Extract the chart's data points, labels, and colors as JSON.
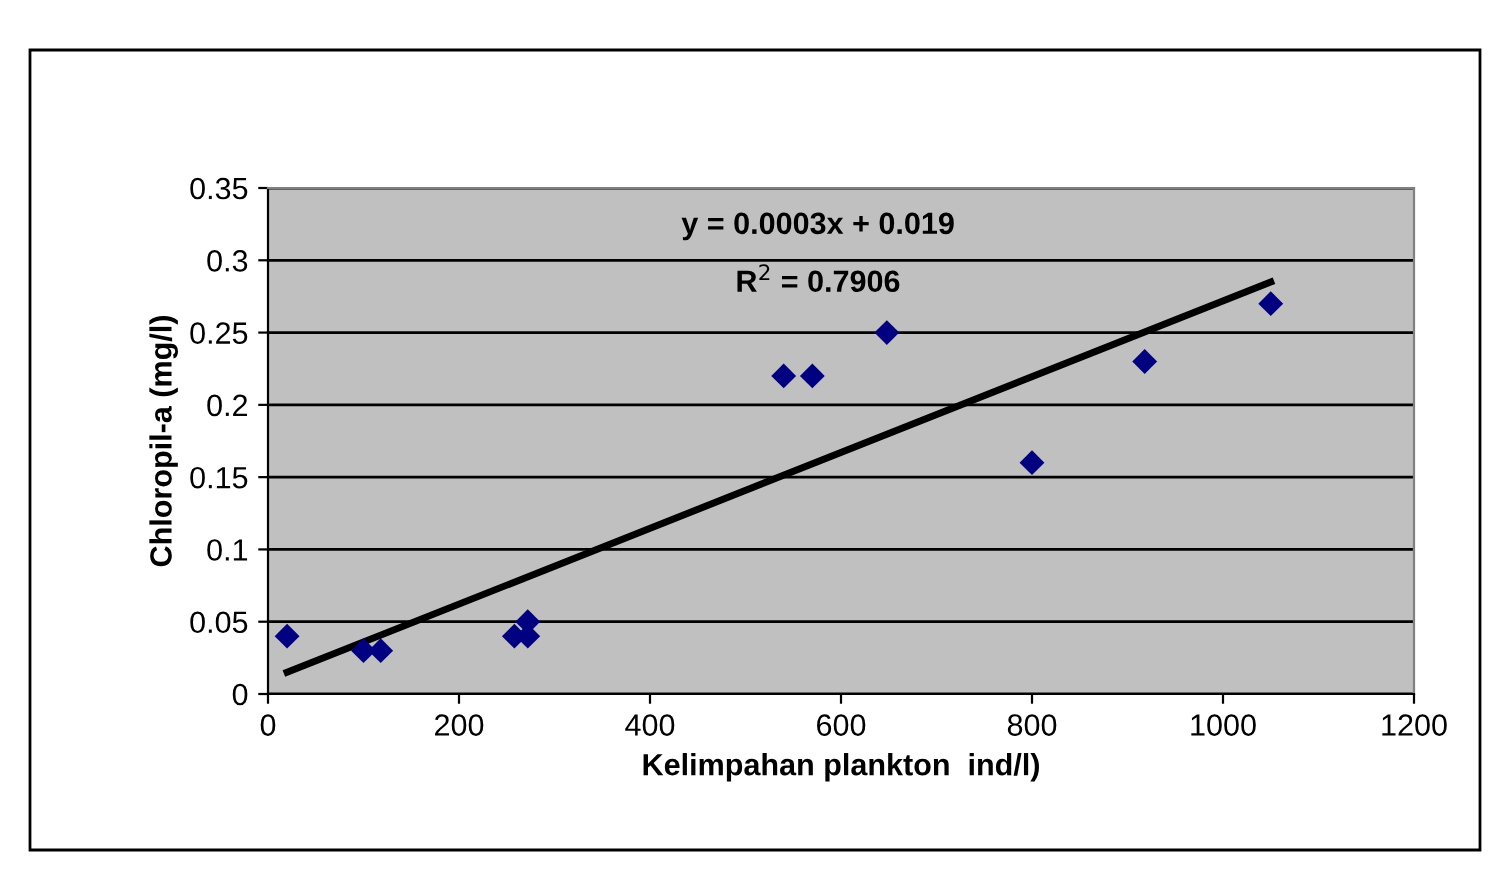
{
  "chart_data": {
    "type": "scatter",
    "xlabel": "Kelimpahan plankton  ind/l)",
    "ylabel": "Chloropil-a (mg/l)",
    "xlim": [
      0,
      1200
    ],
    "xticks": [
      0,
      200,
      400,
      600,
      800,
      1000,
      1200
    ],
    "ylim": [
      0,
      0.35
    ],
    "yticks": [
      0,
      0.05,
      0.1,
      0.15,
      0.2,
      0.25,
      0.3,
      0.35
    ],
    "grid": "y",
    "legend": false,
    "marker": "diamond",
    "series": [
      {
        "color": "#000080",
        "x": [
          20,
          100,
          118,
          258,
          272,
          272,
          540,
          570,
          648,
          800,
          918,
          1050
        ],
        "values": [
          0.04,
          0.03,
          0.03,
          0.04,
          0.04,
          0.05,
          0.22,
          0.22,
          0.25,
          0.16,
          0.23,
          0.27
        ]
      },
      {
        "type": "line",
        "color": "#000000",
        "x": [
          20,
          1050
        ],
        "values": [
          0.015,
          0.285
        ],
        "line_style": "solid",
        "marker": "none"
      }
    ],
    "annotations": [
      "y = 0.0003x + 0.019",
      "R$^{2}$ = 0.7906"
    ]
  }
}
